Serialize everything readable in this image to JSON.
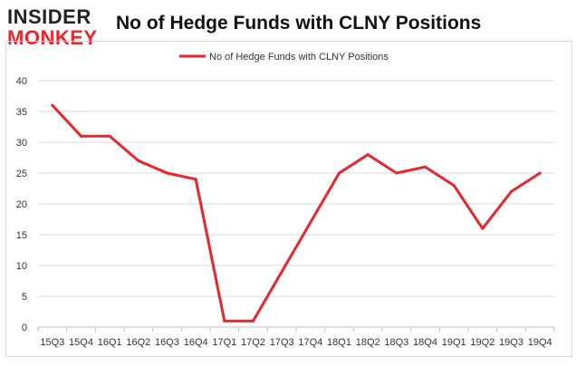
{
  "logo": {
    "top": "INSIDER",
    "bottom": "MONKEY"
  },
  "page_title": "No of Hedge Funds with CLNY Positions",
  "colors": {
    "line": "#e8262b",
    "grid": "#d9d9d9",
    "axis_text": "#333333"
  },
  "chart_data": {
    "type": "line",
    "title": "No of Hedge Funds with CLNY Positions",
    "xlabel": "",
    "ylabel": "",
    "ylim": [
      0,
      40
    ],
    "yticks": [
      0,
      5,
      10,
      15,
      20,
      25,
      30,
      35,
      40
    ],
    "grid": true,
    "legend": "top-center",
    "categories": [
      "15Q3",
      "15Q4",
      "16Q1",
      "16Q2",
      "16Q3",
      "16Q4",
      "17Q1",
      "17Q2",
      "17Q3",
      "17Q4",
      "18Q1",
      "18Q2",
      "18Q3",
      "18Q4",
      "19Q1",
      "19Q2",
      "19Q3",
      "19Q4"
    ],
    "series": [
      {
        "name": "No of Hedge Funds with CLNY Positions",
        "values": [
          36,
          31,
          31,
          27,
          25,
          24,
          1,
          1,
          9,
          17,
          25,
          28,
          25,
          26,
          23,
          16,
          22,
          25
        ]
      }
    ]
  }
}
